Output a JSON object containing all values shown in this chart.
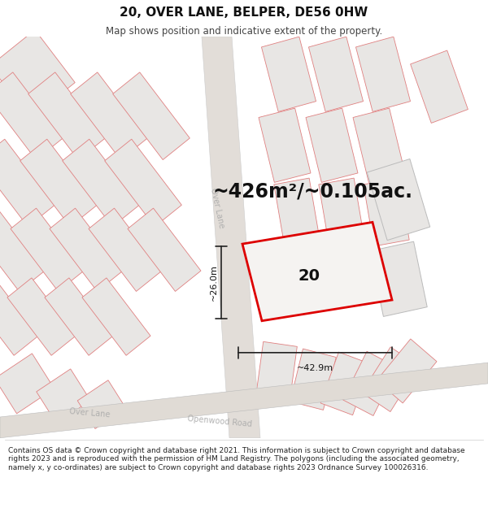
{
  "title": "20, OVER LANE, BELPER, DE56 0HW",
  "subtitle": "Map shows position and indicative extent of the property.",
  "area_text": "~426m²/~0.105ac.",
  "label_number": "20",
  "dim_width": "~42.9m",
  "dim_height": "~26.0m",
  "footer": "Contains OS data © Crown copyright and database right 2021. This information is subject to Crown copyright and database rights 2023 and is reproduced with the permission of HM Land Registry. The polygons (including the associated geometry, namely x, y co-ordinates) are subject to Crown copyright and database rights 2023 Ordnance Survey 100026316.",
  "bg_color": "#f5f3f1",
  "plot_fc": "#e8e6e4",
  "plot_ec": "#e08080",
  "road_fc": "#dedad6",
  "highlight_color": "#dd0000",
  "gray_ec": "#aaaaaa",
  "title_fontsize": 11,
  "subtitle_fontsize": 8.5,
  "area_fontsize": 17,
  "label_fontsize": 14,
  "dim_fontsize": 8,
  "footer_fontsize": 6.5,
  "street_fontsize": 7
}
